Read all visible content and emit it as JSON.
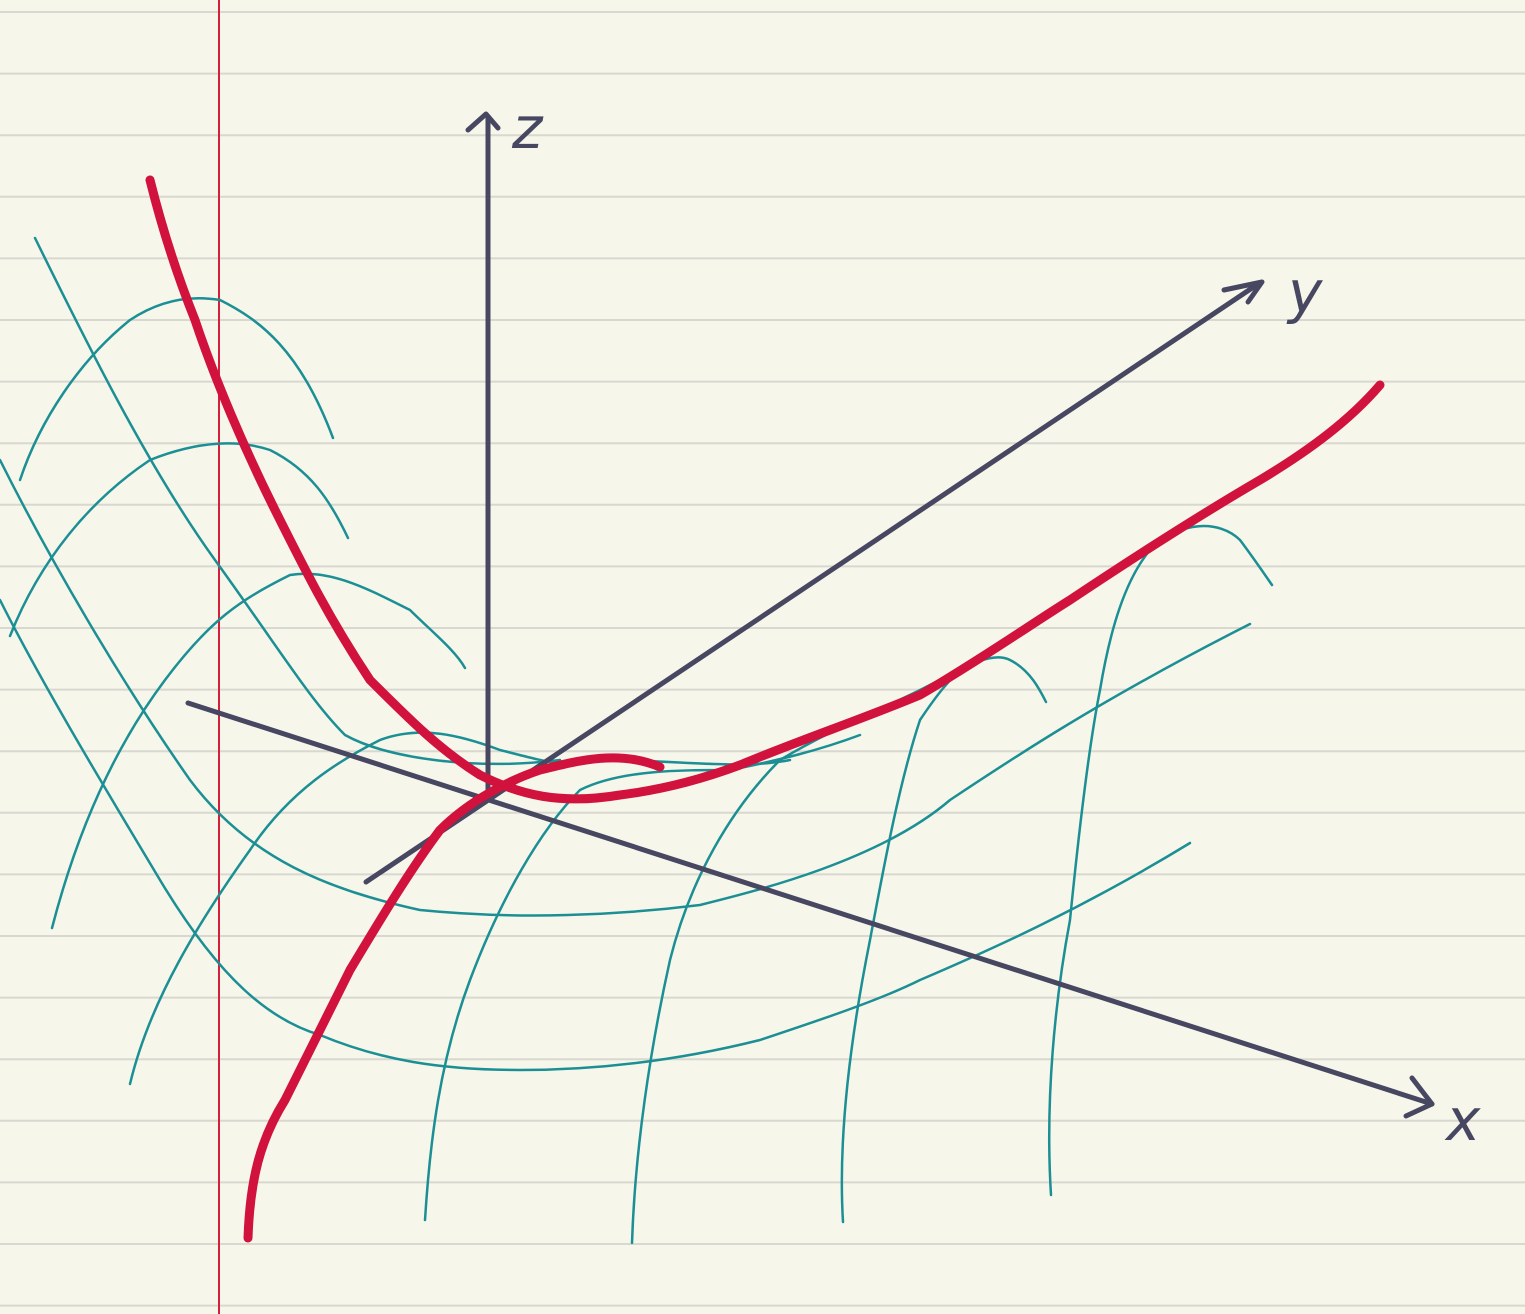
{
  "axes": {
    "x_label": "x",
    "y_label": "y",
    "z_label": "z"
  },
  "colors": {
    "paper": "#f7f6eb",
    "ruled_lines": "#d8d8d0",
    "margin_line": "#d61f3c",
    "axes": "#474761",
    "surface_mesh": "#1b8f94",
    "highlight_curves": "#d0123d"
  }
}
